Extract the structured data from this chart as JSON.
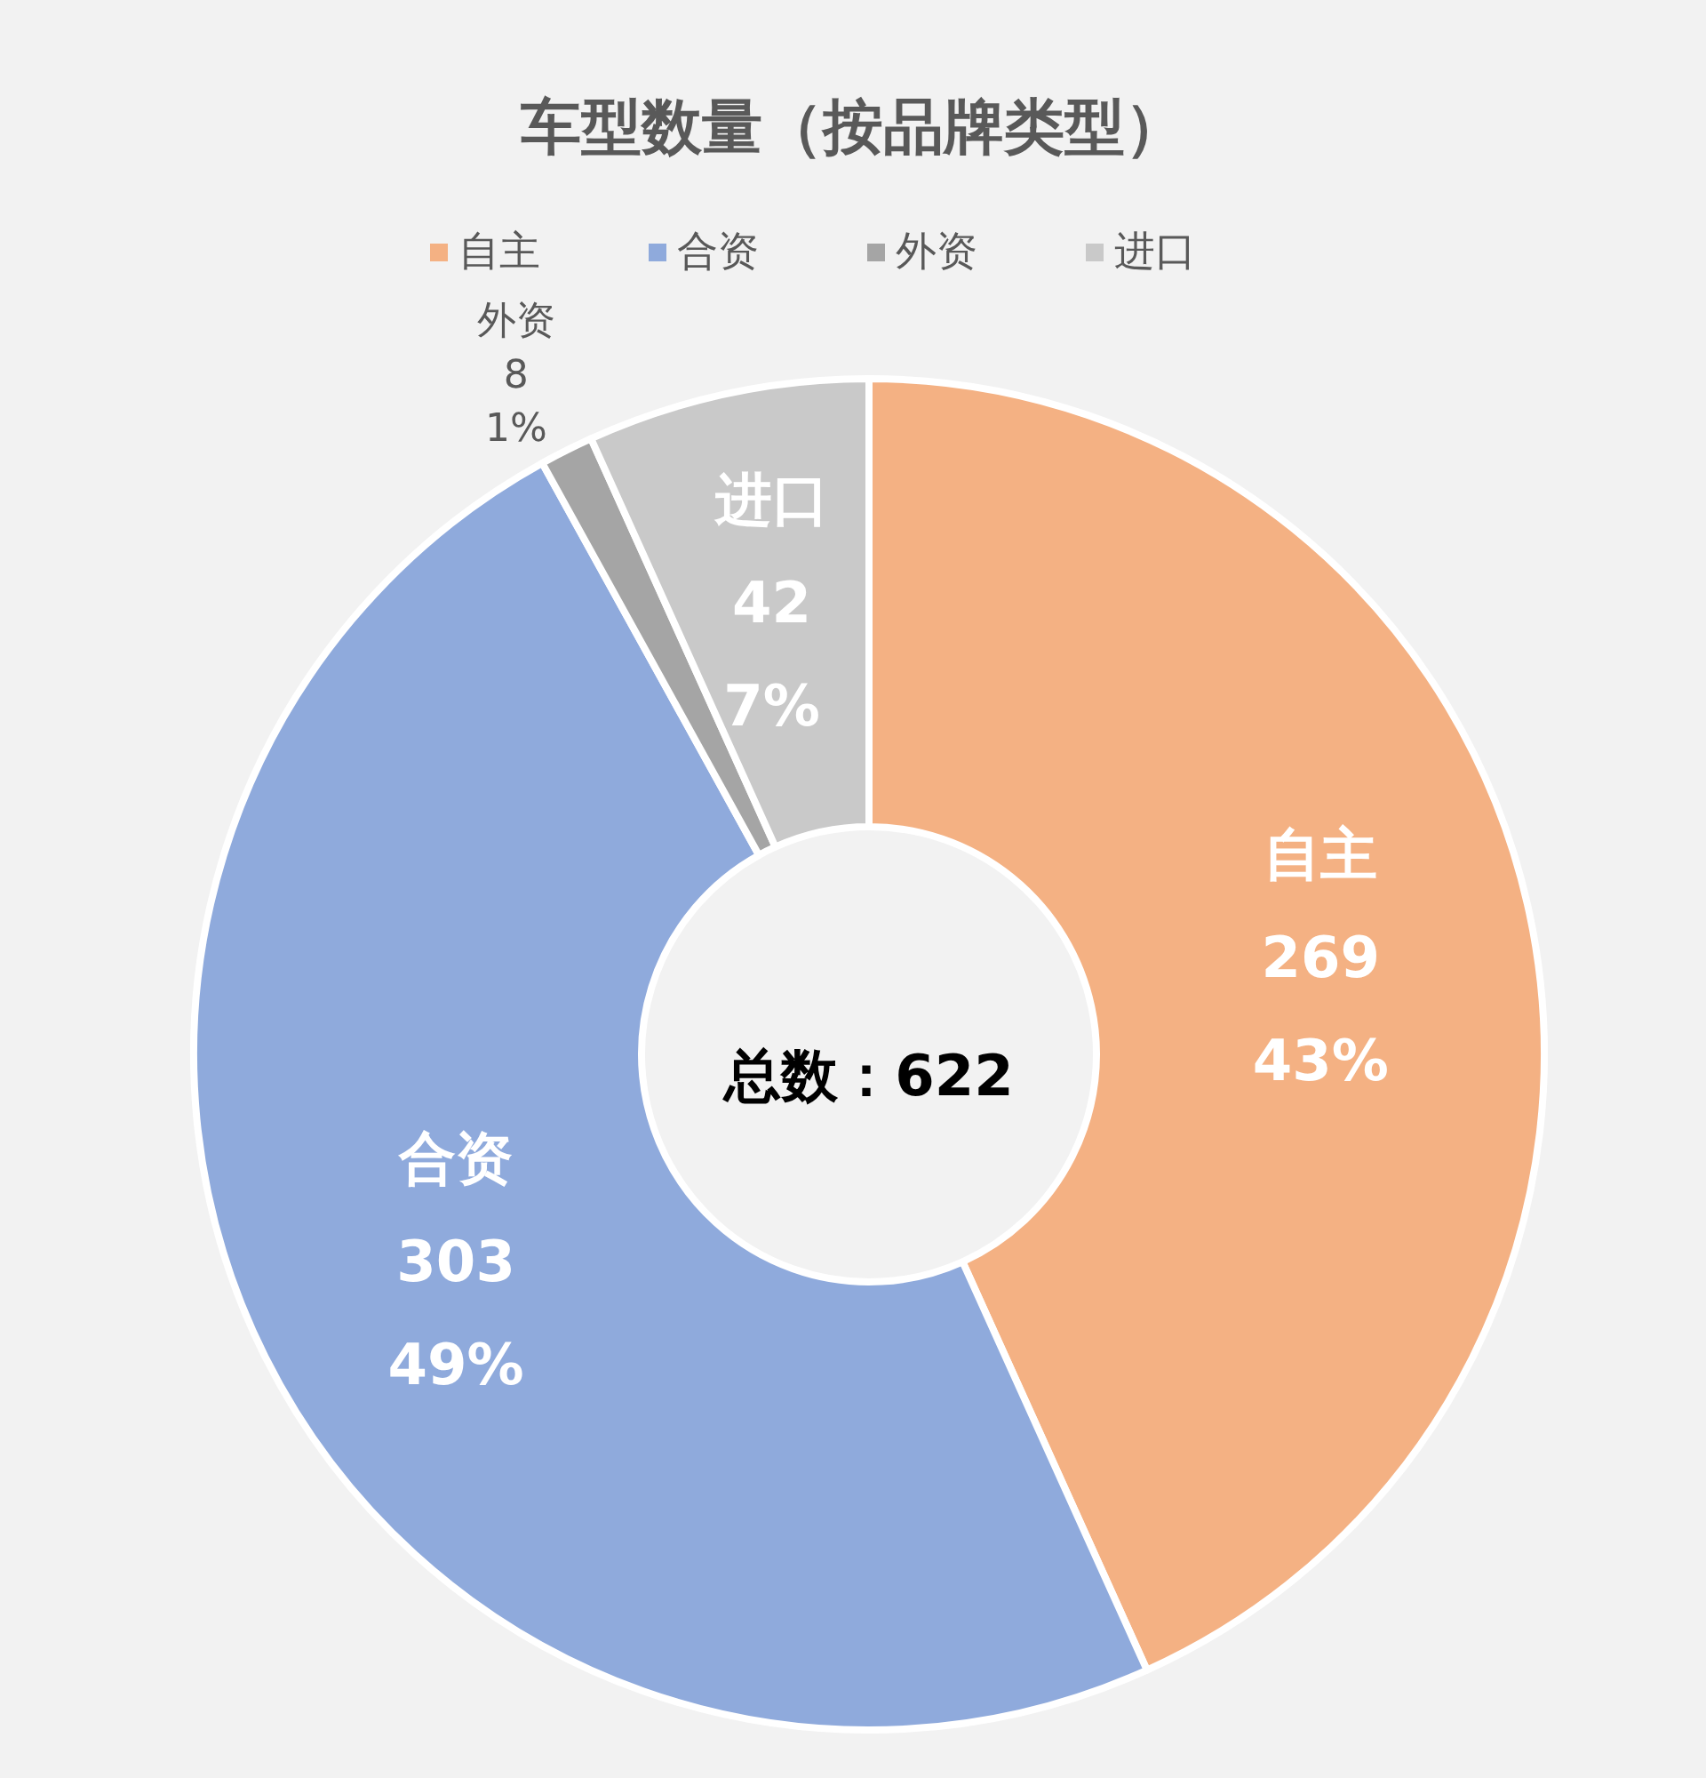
{
  "chart_data": {
    "type": "donut",
    "title": "车型数量（按品牌类型）",
    "categories": [
      "自主",
      "合资",
      "外资",
      "进口"
    ],
    "values": [
      269,
      303,
      8,
      42
    ],
    "colors": [
      "#f4b183",
      "#8faadc",
      "#a5a5a5",
      "#c9c9c9"
    ],
    "value_labels": [
      "269 43%",
      "303 49%",
      "8 1%",
      "42 7%"
    ],
    "legend": "top",
    "annotations": [
      "总数：622"
    ]
  }
}
